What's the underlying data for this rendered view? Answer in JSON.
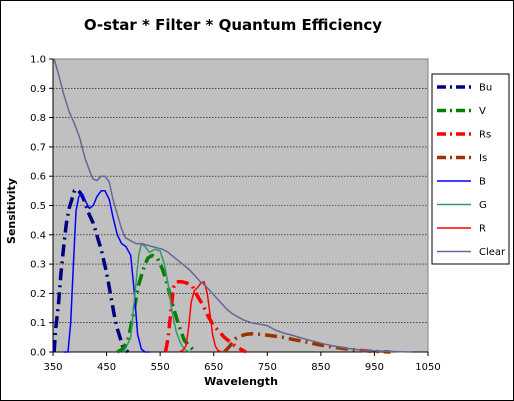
{
  "chart_data": {
    "type": "line",
    "title": "O-star * Filter * Quantum Efficiency",
    "xlabel": "Wavelength",
    "ylabel": "Sensitivity",
    "xlim": [
      350,
      1050
    ],
    "ylim": [
      0,
      1.0
    ],
    "x_ticks": [
      "350",
      "450",
      "550",
      "650",
      "750",
      "850",
      "950",
      "1050"
    ],
    "y_ticks": [
      "0.0",
      "0.1",
      "0.2",
      "0.3",
      "0.4",
      "0.5",
      "0.6",
      "0.7",
      "0.8",
      "0.9",
      "1.0"
    ],
    "grid": "horizontal",
    "plot_background": "#c0c0c0",
    "legend_position": "right",
    "series": [
      {
        "name": "Bu",
        "color": "#000080",
        "style": "dashdot",
        "width": 3.5,
        "points": [
          [
            352,
            0.0
          ],
          [
            355,
            0.08
          ],
          [
            360,
            0.16
          ],
          [
            365,
            0.27
          ],
          [
            370,
            0.36
          ],
          [
            375,
            0.44
          ],
          [
            380,
            0.49
          ],
          [
            385,
            0.52
          ],
          [
            390,
            0.55
          ],
          [
            395,
            0.555
          ],
          [
            400,
            0.545
          ],
          [
            405,
            0.53
          ],
          [
            410,
            0.51
          ],
          [
            415,
            0.48
          ],
          [
            420,
            0.46
          ],
          [
            425,
            0.44
          ],
          [
            430,
            0.41
          ],
          [
            435,
            0.38
          ],
          [
            440,
            0.35
          ],
          [
            445,
            0.31
          ],
          [
            450,
            0.27
          ],
          [
            455,
            0.22
          ],
          [
            460,
            0.17
          ],
          [
            465,
            0.12
          ],
          [
            470,
            0.08
          ],
          [
            475,
            0.05
          ],
          [
            480,
            0.02
          ],
          [
            485,
            0.01
          ],
          [
            490,
            0.0
          ]
        ]
      },
      {
        "name": "V",
        "color": "#008000",
        "style": "dashdot",
        "width": 3.5,
        "points": [
          [
            470,
            0.0
          ],
          [
            480,
            0.01
          ],
          [
            490,
            0.04
          ],
          [
            500,
            0.13
          ],
          [
            510,
            0.23
          ],
          [
            520,
            0.29
          ],
          [
            527,
            0.32
          ],
          [
            535,
            0.33
          ],
          [
            545,
            0.32
          ],
          [
            555,
            0.28
          ],
          [
            565,
            0.22
          ],
          [
            575,
            0.15
          ],
          [
            585,
            0.09
          ],
          [
            595,
            0.04
          ],
          [
            605,
            0.02
          ],
          [
            615,
            0.0
          ]
        ]
      },
      {
        "name": "Rs",
        "color": "#ff0000",
        "style": "dashdot",
        "width": 3.5,
        "points": [
          [
            560,
            0.0
          ],
          [
            565,
            0.05
          ],
          [
            570,
            0.14
          ],
          [
            575,
            0.22
          ],
          [
            580,
            0.24
          ],
          [
            590,
            0.24
          ],
          [
            600,
            0.235
          ],
          [
            610,
            0.225
          ],
          [
            620,
            0.19
          ],
          [
            630,
            0.16
          ],
          [
            640,
            0.12
          ],
          [
            650,
            0.09
          ],
          [
            660,
            0.07
          ],
          [
            670,
            0.05
          ],
          [
            680,
            0.035
          ],
          [
            690,
            0.02
          ],
          [
            700,
            0.01
          ],
          [
            710,
            0.0
          ]
        ]
      },
      {
        "name": "Is",
        "color": "#993300",
        "style": "dashdot",
        "width": 3.5,
        "points": [
          [
            670,
            0.0
          ],
          [
            680,
            0.02
          ],
          [
            690,
            0.045
          ],
          [
            700,
            0.055
          ],
          [
            710,
            0.06
          ],
          [
            720,
            0.062
          ],
          [
            740,
            0.06
          ],
          [
            760,
            0.055
          ],
          [
            780,
            0.05
          ],
          [
            800,
            0.042
          ],
          [
            820,
            0.035
          ],
          [
            840,
            0.027
          ],
          [
            860,
            0.02
          ],
          [
            880,
            0.015
          ],
          [
            900,
            0.01
          ],
          [
            920,
            0.006
          ],
          [
            940,
            0.003
          ],
          [
            960,
            0.001
          ],
          [
            980,
            0.0
          ]
        ]
      },
      {
        "name": "B",
        "color": "#0000ff",
        "style": "solid",
        "width": 1.5,
        "points": [
          [
            370,
            0.0
          ],
          [
            378,
            0.0
          ],
          [
            383,
            0.1
          ],
          [
            388,
            0.3
          ],
          [
            393,
            0.48
          ],
          [
            398,
            0.53
          ],
          [
            405,
            0.54
          ],
          [
            412,
            0.51
          ],
          [
            418,
            0.49
          ],
          [
            425,
            0.5
          ],
          [
            432,
            0.53
          ],
          [
            440,
            0.55
          ],
          [
            447,
            0.55
          ],
          [
            455,
            0.52
          ],
          [
            462,
            0.46
          ],
          [
            470,
            0.4
          ],
          [
            478,
            0.37
          ],
          [
            486,
            0.36
          ],
          [
            495,
            0.33
          ],
          [
            502,
            0.2
          ],
          [
            508,
            0.06
          ],
          [
            515,
            0.01
          ],
          [
            522,
            0.0
          ],
          [
            530,
            0.0
          ]
        ]
      },
      {
        "name": "G",
        "color": "#339966",
        "style": "solid",
        "width": 1.5,
        "points": [
          [
            480,
            0.0
          ],
          [
            485,
            0.01
          ],
          [
            495,
            0.05
          ],
          [
            503,
            0.2
          ],
          [
            510,
            0.33
          ],
          [
            515,
            0.37
          ],
          [
            522,
            0.36
          ],
          [
            530,
            0.34
          ],
          [
            540,
            0.35
          ],
          [
            550,
            0.345
          ],
          [
            558,
            0.3
          ],
          [
            565,
            0.23
          ],
          [
            572,
            0.14
          ],
          [
            580,
            0.07
          ],
          [
            588,
            0.03
          ],
          [
            595,
            0.01
          ],
          [
            605,
            0.0
          ]
        ]
      },
      {
        "name": "R",
        "color": "#ff0000",
        "style": "solid",
        "width": 1.5,
        "points": [
          [
            585,
            0.0
          ],
          [
            592,
            0.005
          ],
          [
            598,
            0.02
          ],
          [
            603,
            0.08
          ],
          [
            608,
            0.17
          ],
          [
            614,
            0.21
          ],
          [
            620,
            0.22
          ],
          [
            626,
            0.235
          ],
          [
            632,
            0.24
          ],
          [
            638,
            0.2
          ],
          [
            643,
            0.13
          ],
          [
            648,
            0.06
          ],
          [
            653,
            0.02
          ],
          [
            658,
            0.005
          ],
          [
            665,
            0.0
          ]
        ]
      },
      {
        "name": "Clear",
        "color": "#666699",
        "style": "solid",
        "width": 1.5,
        "points": [
          [
            352,
            1.0
          ],
          [
            360,
            0.95
          ],
          [
            370,
            0.88
          ],
          [
            380,
            0.82
          ],
          [
            390,
            0.78
          ],
          [
            400,
            0.73
          ],
          [
            410,
            0.66
          ],
          [
            420,
            0.61
          ],
          [
            425,
            0.59
          ],
          [
            432,
            0.585
          ],
          [
            440,
            0.6
          ],
          [
            447,
            0.6
          ],
          [
            455,
            0.58
          ],
          [
            462,
            0.52
          ],
          [
            470,
            0.47
          ],
          [
            478,
            0.42
          ],
          [
            485,
            0.39
          ],
          [
            495,
            0.38
          ],
          [
            505,
            0.37
          ],
          [
            515,
            0.37
          ],
          [
            525,
            0.365
          ],
          [
            535,
            0.36
          ],
          [
            545,
            0.355
          ],
          [
            555,
            0.35
          ],
          [
            565,
            0.34
          ],
          [
            575,
            0.325
          ],
          [
            585,
            0.31
          ],
          [
            595,
            0.295
          ],
          [
            605,
            0.28
          ],
          [
            615,
            0.26
          ],
          [
            625,
            0.24
          ],
          [
            635,
            0.225
          ],
          [
            645,
            0.205
          ],
          [
            655,
            0.185
          ],
          [
            665,
            0.165
          ],
          [
            675,
            0.145
          ],
          [
            685,
            0.13
          ],
          [
            695,
            0.12
          ],
          [
            705,
            0.11
          ],
          [
            720,
            0.1
          ],
          [
            735,
            0.095
          ],
          [
            750,
            0.09
          ],
          [
            765,
            0.075
          ],
          [
            780,
            0.065
          ],
          [
            795,
            0.058
          ],
          [
            810,
            0.05
          ],
          [
            825,
            0.042
          ],
          [
            840,
            0.035
          ],
          [
            855,
            0.028
          ],
          [
            870,
            0.022
          ],
          [
            885,
            0.017
          ],
          [
            900,
            0.012
          ],
          [
            920,
            0.008
          ],
          [
            940,
            0.005
          ],
          [
            960,
            0.003
          ],
          [
            980,
            0.002
          ],
          [
            1000,
            0.001
          ],
          [
            1020,
            0.0
          ]
        ]
      }
    ]
  }
}
